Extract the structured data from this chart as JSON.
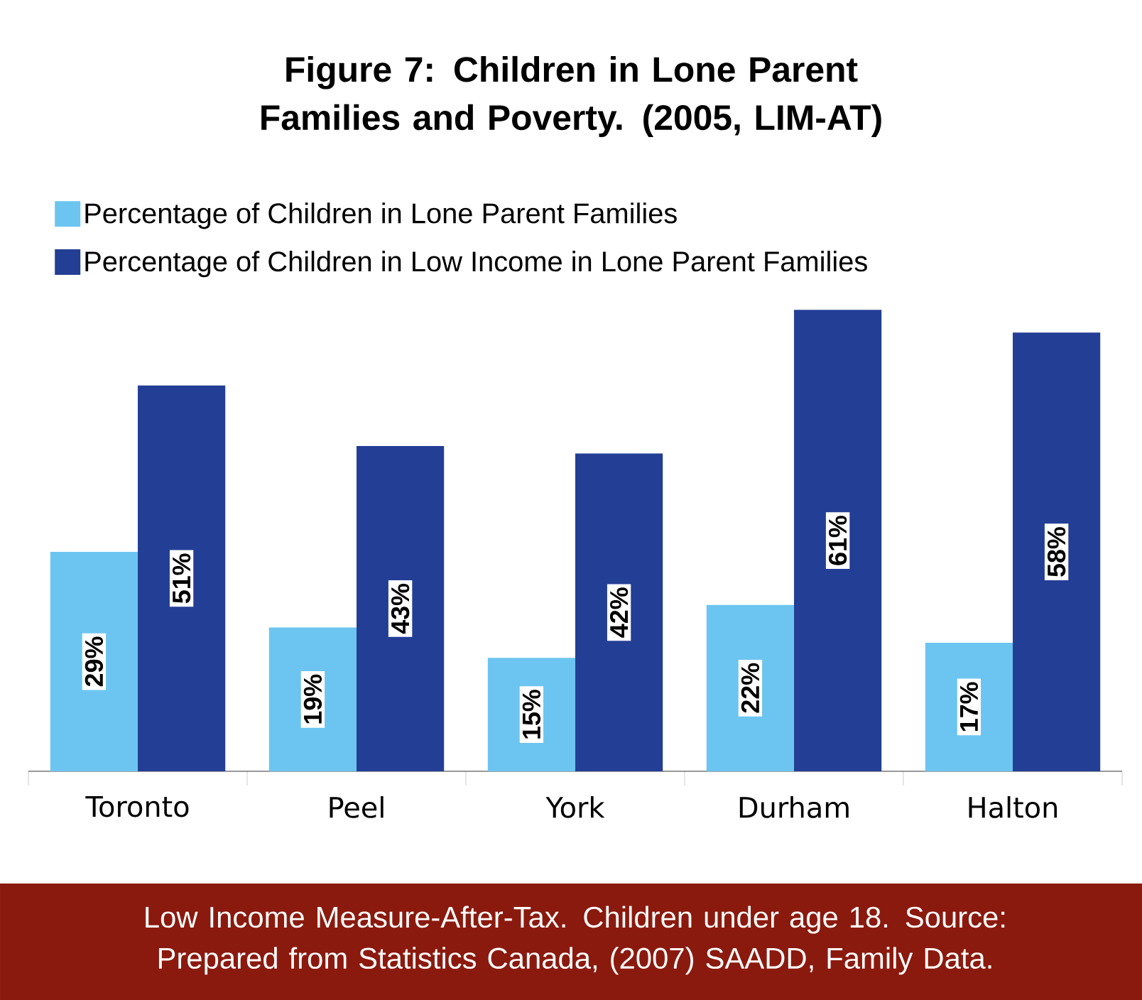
{
  "chart_data": {
    "type": "bar",
    "title": "Figure 7: Children in Lone Parent Families and Poverty. (2005, LIM-AT)",
    "categories": [
      "Toronto",
      "Peel",
      "York",
      "Durham",
      "Halton"
    ],
    "series": [
      {
        "name": "Percentage of Children in Lone Parent Families",
        "color": "#6cc5f0",
        "values": [
          29,
          19,
          15,
          22,
          17
        ],
        "value_labels": [
          "29%",
          "19%",
          "15%",
          "22%",
          "17%"
        ]
      },
      {
        "name": "Percentage of Children in Low Income in Lone Parent Families",
        "color": "#233e95",
        "values": [
          51,
          43,
          42,
          61,
          58
        ],
        "value_labels": [
          "51%",
          "43%",
          "42%",
          "61%",
          "58%"
        ]
      }
    ],
    "legend": "top left",
    "annotations": [
      "Low Income Measure-After-Tax. Children under age 18. Source: Prepared from Statistics Canada, (2007) SAADD, Family Data."
    ]
  }
}
